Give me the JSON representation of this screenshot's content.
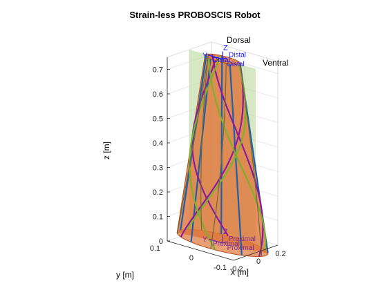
{
  "chart_data": {
    "type": "3d-line",
    "title": "Strain-less PROBOSCIS Robot",
    "xlabel": "x [m]",
    "ylabel": "y [m]",
    "zlabel": "z [m]",
    "xlim": [
      -0.2,
      0.2
    ],
    "ylim": [
      -0.1,
      0.1
    ],
    "zlim": [
      0,
      0.75
    ],
    "x_ticks": [
      "-0.2",
      "0",
      "0.2"
    ],
    "y_ticks": [
      "-0.1",
      "0",
      "0.1"
    ],
    "z_ticks": [
      "0",
      "0.1",
      "0.2",
      "0.3",
      "0.4",
      "0.5",
      "0.6",
      "0.7"
    ],
    "grid": true,
    "base_radius": 0.13,
    "tip_radius": 0.05,
    "tip_height": 0.75,
    "annotations": {
      "dorsal": "Dorsal",
      "ventral": "Ventral"
    },
    "frames": {
      "distal": {
        "origin": "Distal",
        "x": "Distal",
        "y": "Y",
        "z": "Z",
        "z_axis": "Distal"
      },
      "proximal": {
        "origin": "Proximal",
        "x": "Proximal",
        "y": "Y",
        "z": "Z",
        "z_axis": "Proximal"
      }
    },
    "tendon_colors": {
      "straight": "#1f5fa8",
      "helix_cw": "#8b1a9e",
      "helix_ccw": "#7cb22b",
      "inner": "#6b6b3a"
    },
    "colors": {
      "body_fill": "#e0763c",
      "body_edge": "#b84a1a",
      "plane_fill": "#b5d691",
      "distal_frame": "#1a1aff",
      "proximal_frame": "#7a2a9a"
    }
  }
}
